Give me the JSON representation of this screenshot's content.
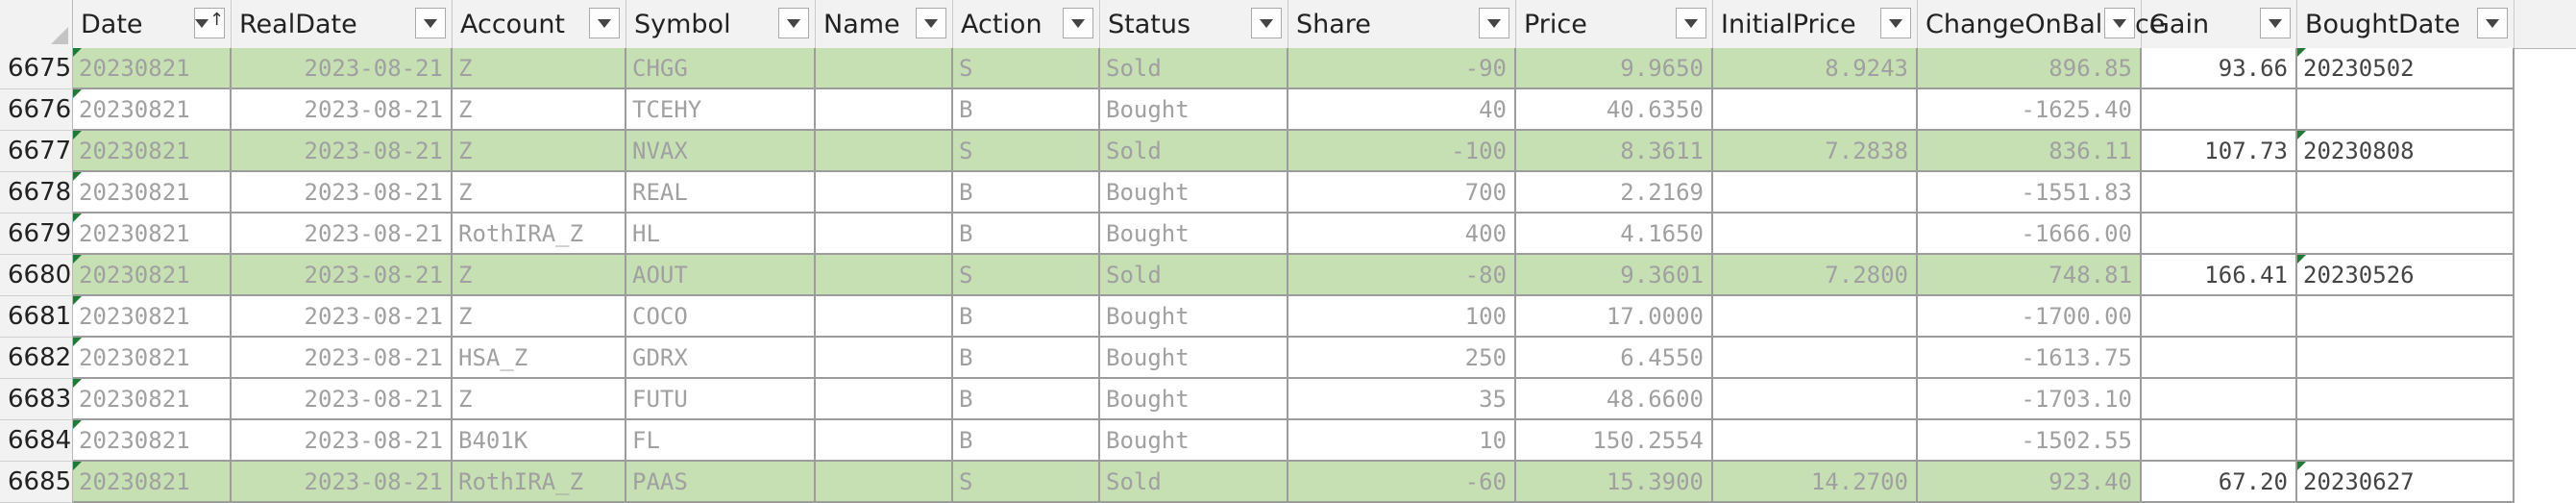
{
  "columns": [
    {
      "key": "date",
      "label": "Date",
      "sorted": true
    },
    {
      "key": "realdate",
      "label": "RealDate"
    },
    {
      "key": "account",
      "label": "Account"
    },
    {
      "key": "symbol",
      "label": "Symbol"
    },
    {
      "key": "name",
      "label": "Name"
    },
    {
      "key": "action",
      "label": "Action"
    },
    {
      "key": "status",
      "label": "Status"
    },
    {
      "key": "share",
      "label": "Share"
    },
    {
      "key": "price",
      "label": "Price"
    },
    {
      "key": "initialprice",
      "label": "InitialPrice"
    },
    {
      "key": "changeonbalance",
      "label": "ChangeOnBalance"
    },
    {
      "key": "gain",
      "label": "Gain"
    },
    {
      "key": "boughtdate",
      "label": "BoughtDate"
    }
  ],
  "rows": [
    {
      "num": "6675",
      "fill": "green",
      "date": "20230821",
      "realdate": "2023-08-21",
      "account": "Z",
      "symbol": "CHGG",
      "name": "",
      "action": "S",
      "status": "Sold",
      "share": "-90",
      "price": "9.9650",
      "initialprice": "8.9243",
      "changeonbalance": "896.85",
      "gain": "93.66",
      "boughtdate": "20230502"
    },
    {
      "num": "6676",
      "fill": "white",
      "date": "20230821",
      "realdate": "2023-08-21",
      "account": "Z",
      "symbol": "TCEHY",
      "name": "",
      "action": "B",
      "status": "Bought",
      "share": "40",
      "price": "40.6350",
      "initialprice": "",
      "changeonbalance": "-1625.40",
      "gain": "",
      "boughtdate": ""
    },
    {
      "num": "6677",
      "fill": "green",
      "date": "20230821",
      "realdate": "2023-08-21",
      "account": "Z",
      "symbol": "NVAX",
      "name": "",
      "action": "S",
      "status": "Sold",
      "share": "-100",
      "price": "8.3611",
      "initialprice": "7.2838",
      "changeonbalance": "836.11",
      "gain": "107.73",
      "boughtdate": "20230808"
    },
    {
      "num": "6678",
      "fill": "white",
      "date": "20230821",
      "realdate": "2023-08-21",
      "account": "Z",
      "symbol": "REAL",
      "name": "",
      "action": "B",
      "status": "Bought",
      "share": "700",
      "price": "2.2169",
      "initialprice": "",
      "changeonbalance": "-1551.83",
      "gain": "",
      "boughtdate": ""
    },
    {
      "num": "6679",
      "fill": "white",
      "date": "20230821",
      "realdate": "2023-08-21",
      "account": "RothIRA_Z",
      "symbol": "HL",
      "name": "",
      "action": "B",
      "status": "Bought",
      "share": "400",
      "price": "4.1650",
      "initialprice": "",
      "changeonbalance": "-1666.00",
      "gain": "",
      "boughtdate": ""
    },
    {
      "num": "6680",
      "fill": "green",
      "date": "20230821",
      "realdate": "2023-08-21",
      "account": "Z",
      "symbol": "AOUT",
      "name": "",
      "action": "S",
      "status": "Sold",
      "share": "-80",
      "price": "9.3601",
      "initialprice": "7.2800",
      "changeonbalance": "748.81",
      "gain": "166.41",
      "boughtdate": "20230526"
    },
    {
      "num": "6681",
      "fill": "white",
      "date": "20230821",
      "realdate": "2023-08-21",
      "account": "Z",
      "symbol": "COCO",
      "name": "",
      "action": "B",
      "status": "Bought",
      "share": "100",
      "price": "17.0000",
      "initialprice": "",
      "changeonbalance": "-1700.00",
      "gain": "",
      "boughtdate": ""
    },
    {
      "num": "6682",
      "fill": "white",
      "date": "20230821",
      "realdate": "2023-08-21",
      "account": "HSA_Z",
      "symbol": "GDRX",
      "name": "",
      "action": "B",
      "status": "Bought",
      "share": "250",
      "price": "6.4550",
      "initialprice": "",
      "changeonbalance": "-1613.75",
      "gain": "",
      "boughtdate": ""
    },
    {
      "num": "6683",
      "fill": "white",
      "date": "20230821",
      "realdate": "2023-08-21",
      "account": "Z",
      "symbol": "FUTU",
      "name": "",
      "action": "B",
      "status": "Bought",
      "share": "35",
      "price": "48.6600",
      "initialprice": "",
      "changeonbalance": "-1703.10",
      "gain": "",
      "boughtdate": ""
    },
    {
      "num": "6684",
      "fill": "white",
      "date": "20230821",
      "realdate": "2023-08-21",
      "account": "B401K",
      "symbol": "FL",
      "name": "",
      "action": "B",
      "status": "Bought",
      "share": "10",
      "price": "150.2554",
      "initialprice": "",
      "changeonbalance": "-1502.55",
      "gain": "",
      "boughtdate": ""
    },
    {
      "num": "6685",
      "fill": "green",
      "date": "20230821",
      "realdate": "2023-08-21",
      "account": "RothIRA_Z",
      "symbol": "PAAS",
      "name": "",
      "action": "S",
      "status": "Sold",
      "share": "-60",
      "price": "15.3900",
      "initialprice": "14.2700",
      "changeonbalance": "923.40",
      "gain": "67.20",
      "boughtdate": "20230627"
    }
  ]
}
